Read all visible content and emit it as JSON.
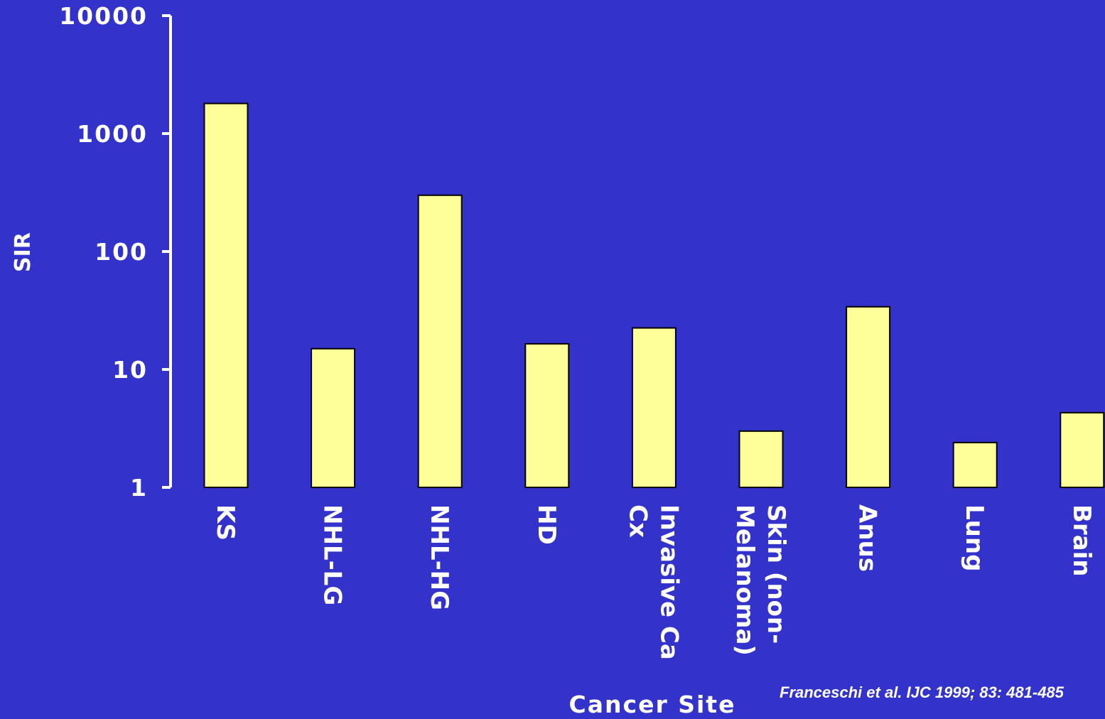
{
  "chart_data": {
    "type": "bar",
    "y_scale": "log",
    "ylabel": "SIR",
    "xlabel": "Cancer Site",
    "ylim": [
      1,
      10000
    ],
    "y_ticks": [
      "10000",
      "1000",
      "100",
      "10",
      "1"
    ],
    "y_tick_values": [
      10000,
      1000,
      100,
      10,
      1
    ],
    "categories": [
      [
        "KS"
      ],
      [
        "NHL-LG"
      ],
      [
        "NHL-HG"
      ],
      [
        "HD"
      ],
      [
        "Invasive Ca",
        "Cx"
      ],
      [
        "Skin (non-",
        "Melanoma)"
      ],
      [
        "Anus"
      ],
      [
        "Lung"
      ],
      [
        "Brain"
      ]
    ],
    "values": [
      1800,
      15,
      300,
      16.5,
      22.5,
      3,
      34,
      2.4,
      4.3
    ],
    "grid": false,
    "legend": "none",
    "colors": {
      "background": "#3333cc",
      "bar_fill": "#ffff99",
      "bar_stroke": "#000000",
      "axis": "#ffffff",
      "text": "#ffffff"
    }
  },
  "citation": "Franceschi et al. IJC 1999; 83: 481-485"
}
